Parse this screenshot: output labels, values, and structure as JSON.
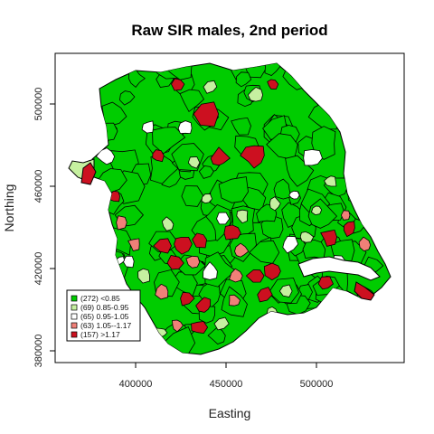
{
  "title": "Raw SIR males, 2nd period",
  "x_axis": {
    "label": "Easting",
    "ticks": [
      {
        "value": 400000,
        "text": "400000"
      },
      {
        "value": 450000,
        "text": "450000"
      },
      {
        "value": 500000,
        "text": "500000"
      }
    ]
  },
  "y_axis": {
    "label": "Northing",
    "ticks": [
      {
        "value": 380000,
        "text": "380000"
      },
      {
        "value": 420000,
        "text": "420000"
      },
      {
        "value": 460000,
        "text": "460000"
      },
      {
        "value": 500000,
        "text": "500000"
      }
    ]
  },
  "legend": {
    "placement": "bottom-left",
    "items": [
      {
        "label": "(272) <0.85",
        "color": "#00cc00"
      },
      {
        "label": "(69) 0.85-0.95",
        "color": "#c6f0a0"
      },
      {
        "label": "(65) 0.95-1.05",
        "color": "#ffffff"
      },
      {
        "label": "(63) 1.05--1.17",
        "color": "#f08078"
      },
      {
        "label": "(157) >1.17",
        "color": "#cc1020"
      }
    ]
  },
  "map_colors": {
    "frame": "#000000",
    "boundary": "#000000",
    "water": "#ffffff"
  }
}
